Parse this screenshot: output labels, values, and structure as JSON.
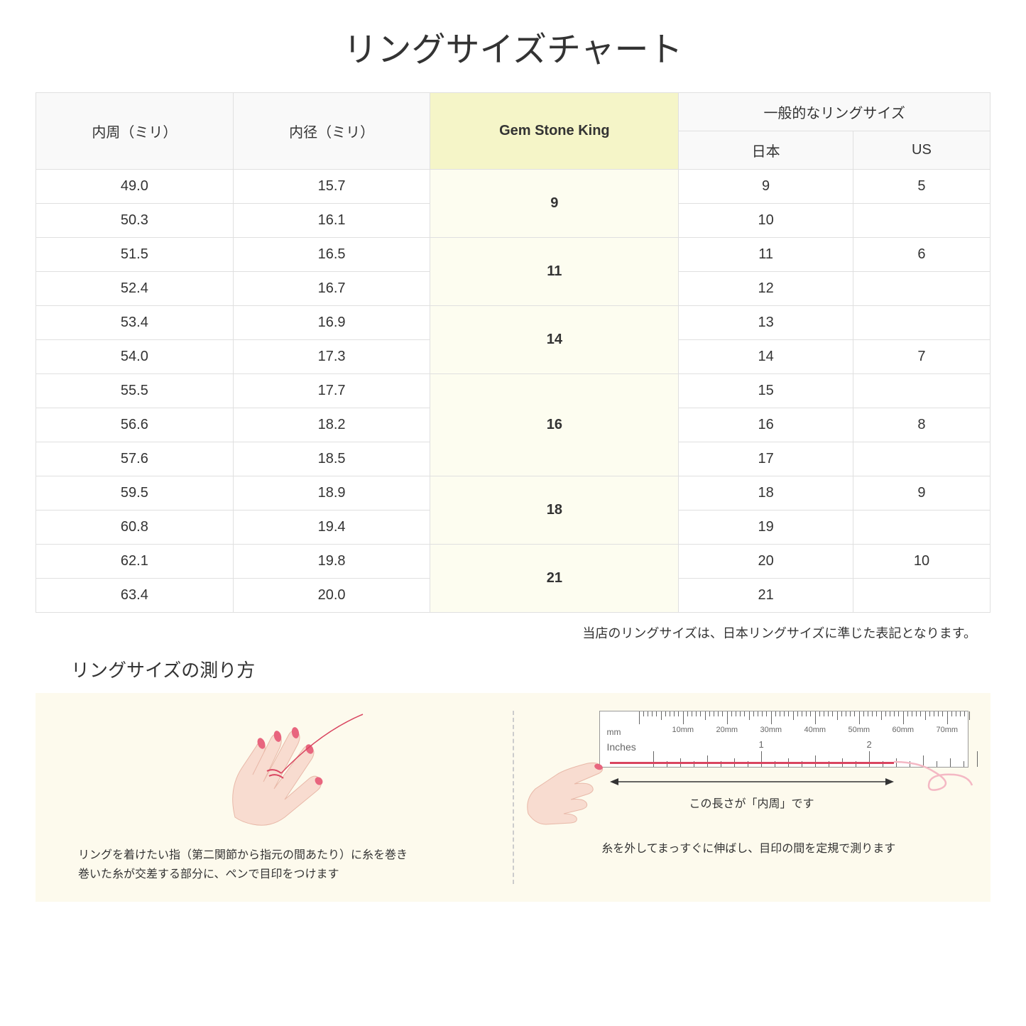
{
  "title": "リングサイズチャート",
  "table": {
    "headers": {
      "circumference": "内周（ミリ）",
      "diameter": "内径（ミリ）",
      "gsk": "Gem Stone King",
      "general": "一般的なリングサイズ",
      "japan": "日本",
      "us": "US"
    },
    "rows": [
      {
        "circ": "49.0",
        "diam": "15.7",
        "gsk": "9",
        "gsk_span": 2,
        "jp": "9",
        "us": "5"
      },
      {
        "circ": "50.3",
        "diam": "16.1",
        "jp": "10",
        "us": ""
      },
      {
        "circ": "51.5",
        "diam": "16.5",
        "gsk": "11",
        "gsk_span": 2,
        "jp": "11",
        "us": "6"
      },
      {
        "circ": "52.4",
        "diam": "16.7",
        "jp": "12",
        "us": ""
      },
      {
        "circ": "53.4",
        "diam": "16.9",
        "gsk": "14",
        "gsk_span": 2,
        "jp": "13",
        "us": ""
      },
      {
        "circ": "54.0",
        "diam": "17.3",
        "jp": "14",
        "us": "7"
      },
      {
        "circ": "55.5",
        "diam": "17.7",
        "gsk": "16",
        "gsk_span": 3,
        "jp": "15",
        "us": ""
      },
      {
        "circ": "56.6",
        "diam": "18.2",
        "jp": "16",
        "us": "8"
      },
      {
        "circ": "57.6",
        "diam": "18.5",
        "jp": "17",
        "us": ""
      },
      {
        "circ": "59.5",
        "diam": "18.9",
        "gsk": "18",
        "gsk_span": 2,
        "jp": "18",
        "us": "9"
      },
      {
        "circ": "60.8",
        "diam": "19.4",
        "jp": "19",
        "us": ""
      },
      {
        "circ": "62.1",
        "diam": "19.8",
        "gsk": "21",
        "gsk_span": 2,
        "jp": "20",
        "us": "10"
      },
      {
        "circ": "63.4",
        "diam": "20.0",
        "jp": "21",
        "us": ""
      }
    ],
    "header_bg": "#f9f9f9",
    "highlight_bg": "#f5f5c8",
    "highlight_cell_bg": "#fdfdf0",
    "border_color": "#e0e0e0"
  },
  "note": "当店のリングサイズは、日本リングサイズに準じた表記となります。",
  "measure": {
    "title": "リングサイズの測り方",
    "left_text1": "リングを着けたい指（第二関節から指元の間あたり）に糸を巻き",
    "left_text2": "巻いた糸が交差する部分に、ペンで目印をつけます",
    "arrow_text": "この長さが「内周」です",
    "right_text": "糸を外してまっすぐに伸ばし、目印の間を定規で測ります",
    "section_bg": "#fdfaed",
    "hand_color": "#f8dcd0",
    "nail_color": "#e8657e",
    "thread_color": "#d94560"
  },
  "ruler": {
    "mm_label": "mm",
    "inch_label": "Inches",
    "mm_marks": [
      "10mm",
      "20mm",
      "30mm",
      "40mm",
      "50mm",
      "60mm",
      "70mm"
    ],
    "inch_marks": [
      "1",
      "2"
    ]
  }
}
